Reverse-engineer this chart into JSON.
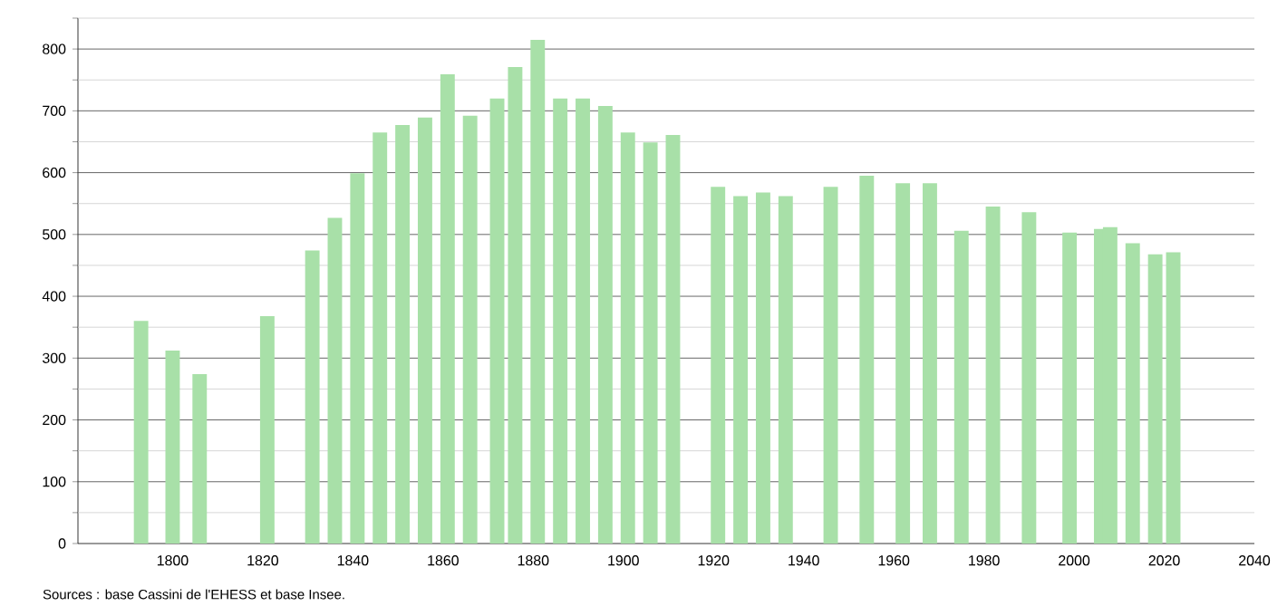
{
  "chart_data": {
    "type": "bar",
    "x": [
      1793,
      1800,
      1806,
      1821,
      1831,
      1836,
      1841,
      1846,
      1851,
      1856,
      1861,
      1866,
      1872,
      1876,
      1881,
      1886,
      1891,
      1896,
      1901,
      1906,
      1911,
      1921,
      1926,
      1931,
      1936,
      1946,
      1954,
      1962,
      1968,
      1975,
      1982,
      1990,
      1999,
      2006,
      2008,
      2013,
      2018,
      2022
    ],
    "values": [
      360,
      312,
      274,
      368,
      474,
      527,
      599,
      665,
      677,
      689,
      759,
      692,
      720,
      771,
      815,
      720,
      720,
      708,
      665,
      649,
      661,
      577,
      562,
      568,
      562,
      577,
      595,
      583,
      583,
      506,
      545,
      536,
      503,
      509,
      512,
      486,
      468,
      471
    ],
    "color": "#a8e0a8",
    "xlim": [
      1779,
      2040
    ],
    "xticks": [
      1800,
      1820,
      1840,
      1860,
      1880,
      1900,
      1920,
      1940,
      1960,
      1980,
      2000,
      2020,
      2040
    ],
    "ylim": [
      0,
      850
    ],
    "yticks": [
      0,
      {
        "value": 50,
        "label": null
      },
      100,
      {
        "value": 150,
        "label": null
      },
      200,
      {
        "value": 250,
        "label": null
      },
      300,
      {
        "value": 350,
        "label": null
      },
      400,
      {
        "value": 450,
        "label": null
      },
      500,
      {
        "value": 550,
        "label": null
      },
      600,
      {
        "value": 650,
        "label": null
      },
      700,
      {
        "value": 750,
        "label": null
      },
      800,
      {
        "value": 850,
        "label": null
      }
    ],
    "grid": "y",
    "annotations": [
      "Sources : base Cassini de l'EHESS et base Insee."
    ]
  }
}
